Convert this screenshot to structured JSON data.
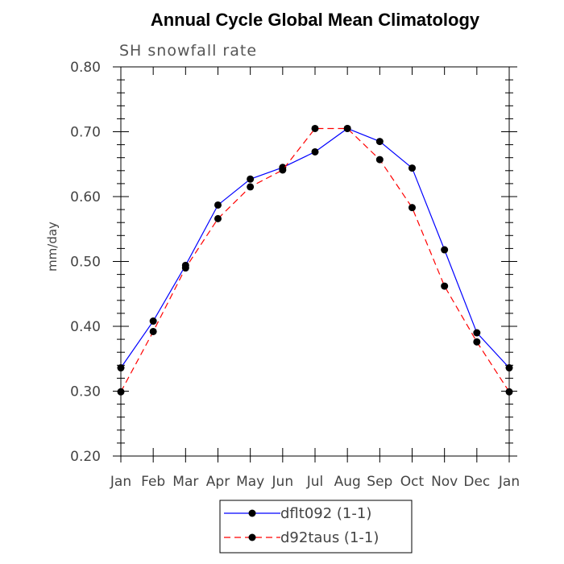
{
  "chart_data": {
    "type": "line",
    "title": "Annual Cycle Global Mean Climatology",
    "subtitle": "SH snowfall rate",
    "xlabel": "",
    "ylabel": "mm/day",
    "categories": [
      "Jan",
      "Feb",
      "Mar",
      "Apr",
      "May",
      "Jun",
      "Jul",
      "Aug",
      "Sep",
      "Oct",
      "Nov",
      "Dec",
      "Jan"
    ],
    "ylim": [
      0.2,
      0.8
    ],
    "yticks": [
      "0.20",
      "0.30",
      "0.40",
      "0.50",
      "0.60",
      "0.70",
      "0.80"
    ],
    "legend_position": "bottom-center",
    "series": [
      {
        "name": "dflt092 (1-1)",
        "color": "#0000ff",
        "dash": "solid",
        "values": [
          0.336,
          0.408,
          0.494,
          0.587,
          0.627,
          0.645,
          0.669,
          0.705,
          0.685,
          0.644,
          0.518,
          0.39,
          0.336
        ]
      },
      {
        "name": "d92taus (1-1)",
        "color": "#ff0000",
        "dash": "dashed",
        "values": [
          0.299,
          0.392,
          0.49,
          0.566,
          0.615,
          0.641,
          0.705,
          0.705,
          0.657,
          0.583,
          0.462,
          0.376,
          0.299
        ]
      }
    ]
  }
}
